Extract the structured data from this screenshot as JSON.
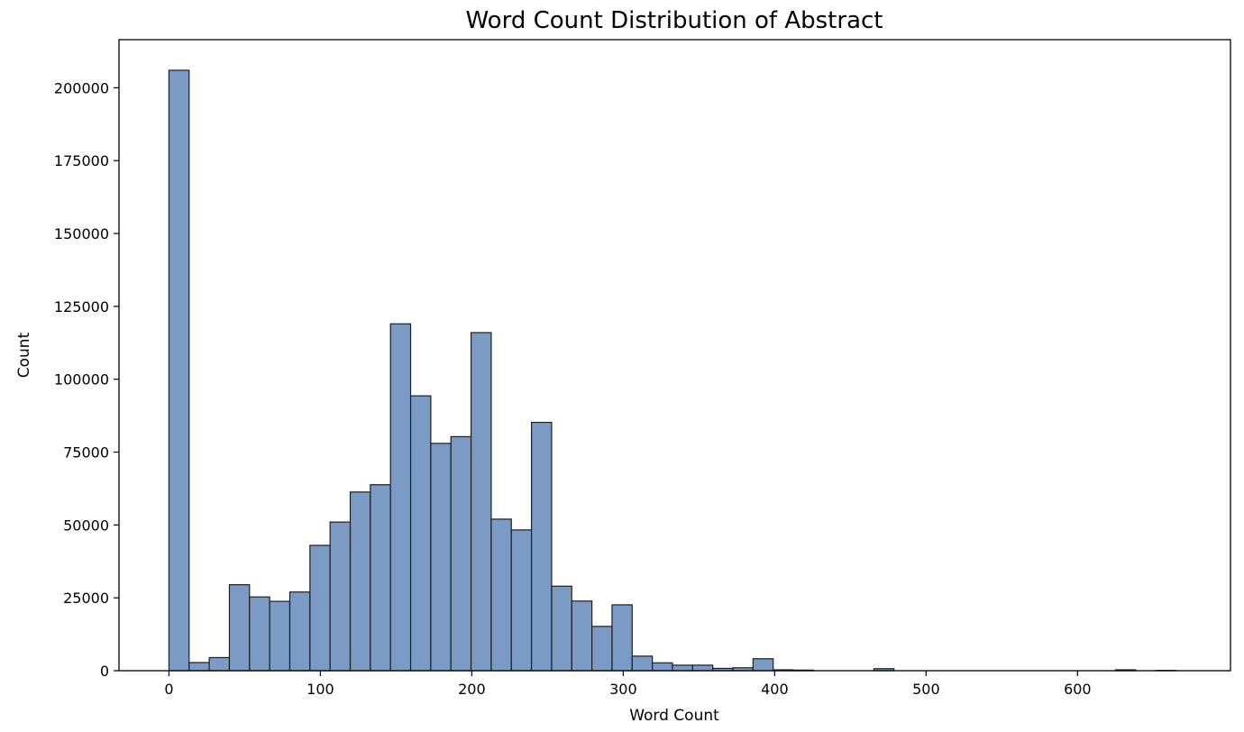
{
  "chart_data": {
    "type": "bar",
    "subtype": "histogram",
    "title": "Word Count Distribution of Abstract",
    "xlabel": "Word Count",
    "ylabel": "Count",
    "xlim": [
      -33,
      701
    ],
    "ylim": [
      0,
      216500
    ],
    "xticks": [
      0,
      100,
      200,
      300,
      400,
      500,
      600
    ],
    "yticks": [
      0,
      25000,
      50000,
      75000,
      100000,
      125000,
      150000,
      175000,
      200000
    ],
    "bin_edges": [
      0,
      13.3,
      26.6,
      39.9,
      53.2,
      66.5,
      79.8,
      93.1,
      106.4,
      119.7,
      133.0,
      146.3,
      159.6,
      172.9,
      186.2,
      199.5,
      212.8,
      226.1,
      239.4,
      252.7,
      266.0,
      279.3,
      292.6,
      305.9,
      319.2,
      332.5,
      345.8,
      359.1,
      372.4,
      385.7,
      399.0,
      412.3,
      425.6,
      438.9,
      452.2,
      465.5,
      478.8,
      492.1,
      505.4,
      518.7,
      532.0,
      545.3,
      558.6,
      571.9,
      585.2,
      598.5,
      611.8,
      625.1,
      638.4,
      651.7,
      665.0
    ],
    "values": [
      206000,
      2800,
      4500,
      29500,
      25300,
      23800,
      27000,
      43000,
      51000,
      61300,
      63800,
      119000,
      94300,
      78000,
      80300,
      116000,
      52000,
      48300,
      85200,
      29000,
      23900,
      15200,
      22600,
      5000,
      2700,
      1900,
      1900,
      800,
      1000,
      4100,
      300,
      200,
      0,
      0,
      0,
      700,
      0,
      0,
      0,
      0,
      0,
      0,
      0,
      0,
      0,
      0,
      0,
      300,
      0,
      100
    ],
    "bar_color": "#7b9bc4",
    "edge_color": "#1f1f1f",
    "grid": false,
    "legend": false
  }
}
